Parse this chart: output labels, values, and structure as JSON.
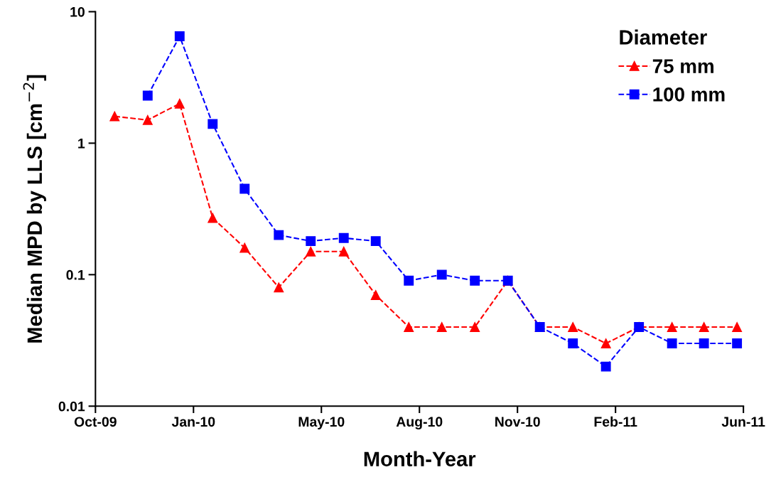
{
  "chart_data": {
    "type": "line",
    "xlabel": "Month-Year",
    "ylabel": "Median MPD by LLS [cm$^{−2}$]",
    "legend_title": "Diameter",
    "legend": "top right",
    "log": "y",
    "grid": false,
    "line_style": "dashed",
    "ylim": [
      0.01,
      10
    ],
    "yticks": [
      0.01,
      0.1,
      1,
      10
    ],
    "xlim": [
      "2009-10-01",
      "2011-06-01"
    ],
    "xticks": [
      {
        "value": "2009-10-01",
        "label": "Oct-09"
      },
      {
        "value": "2010-01-01",
        "label": "Jan-10"
      },
      {
        "value": "2010-05-01",
        "label": "May-10"
      },
      {
        "value": "2010-08-01",
        "label": "Aug-10"
      },
      {
        "value": "2010-11-01",
        "label": "Nov-10"
      },
      {
        "value": "2011-02-01",
        "label": "Feb-11"
      },
      {
        "value": "2011-06-01",
        "label": "Jun-11"
      }
    ],
    "series": [
      {
        "name": "75 mm",
        "color": "#ff0000",
        "marker": "triangle",
        "x": [
          "2009-10-19",
          "2009-11-19",
          "2009-12-19",
          "2010-01-19",
          "2010-02-18",
          "2010-03-22",
          "2010-04-21",
          "2010-05-22",
          "2010-06-21",
          "2010-07-22",
          "2010-08-22",
          "2010-09-22",
          "2010-10-23",
          "2010-11-22",
          "2010-12-23",
          "2011-01-23",
          "2011-02-23",
          "2011-03-26",
          "2011-04-25",
          "2011-05-26"
        ],
        "values": [
          1.6,
          1.5,
          2.0,
          0.27,
          0.16,
          0.08,
          0.15,
          0.15,
          0.07,
          0.04,
          0.04,
          0.04,
          0.09,
          0.04,
          0.04,
          0.03,
          0.04,
          0.04,
          0.04,
          0.04
        ]
      },
      {
        "name": "100 mm",
        "color": "#0000ff",
        "marker": "square",
        "x": [
          "2009-11-19",
          "2009-12-19",
          "2010-01-19",
          "2010-02-18",
          "2010-03-22",
          "2010-04-21",
          "2010-05-22",
          "2010-06-21",
          "2010-07-22",
          "2010-08-22",
          "2010-09-22",
          "2010-10-23",
          "2010-11-22",
          "2010-12-23",
          "2011-01-23",
          "2011-02-23",
          "2011-03-26",
          "2011-04-25",
          "2011-05-26"
        ],
        "values": [
          2.3,
          6.5,
          1.4,
          0.45,
          0.2,
          0.18,
          0.19,
          0.18,
          0.09,
          0.1,
          0.09,
          0.09,
          0.04,
          0.03,
          0.02,
          0.04,
          0.03,
          0.03,
          0.03
        ]
      }
    ]
  }
}
